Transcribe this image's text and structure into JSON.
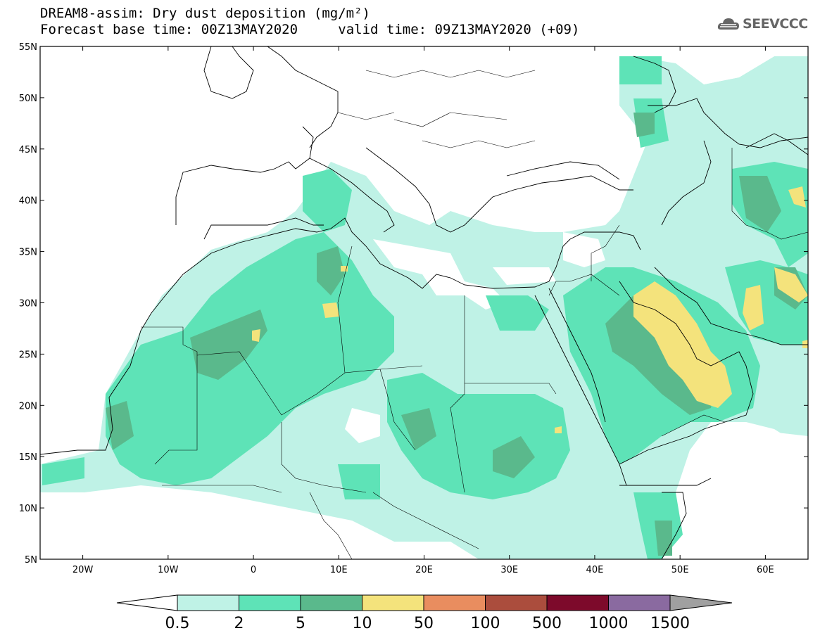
{
  "header": {
    "title_line1": "DREAM8-assim: Dry dust deposition (mg/m²)",
    "base_time_label": "Forecast base time: 00Z13MAY2020",
    "valid_time_label": "valid time: 09Z13MAY2020 (+09)"
  },
  "logo": {
    "text": "SEEVCCC",
    "icon": "cloud-logo-icon"
  },
  "map": {
    "lat_ticks": [
      "55N",
      "50N",
      "45N",
      "40N",
      "35N",
      "30N",
      "25N",
      "20N",
      "15N",
      "10N",
      "5N"
    ],
    "lon_ticks": [
      "20W",
      "10W",
      "0",
      "10E",
      "20E",
      "30E",
      "40E",
      "50E",
      "60E"
    ],
    "extent": {
      "lon_min": -25,
      "lon_max": 65,
      "lat_min": 5,
      "lat_max": 55
    }
  },
  "colorbar": {
    "labels": [
      "0.5",
      "2",
      "5",
      "10",
      "50",
      "100",
      "500",
      "1000",
      "1500"
    ],
    "colors": [
      "#bff2e6",
      "#5ee3b7",
      "#5ab98c",
      "#f4e37c",
      "#e98d5f",
      "#ab4d3d",
      "#7d0a2b",
      "#8a6aa0",
      "#a0a0a0"
    ],
    "under_color": "#ffffff",
    "over_color": "#a0a0a0"
  }
}
